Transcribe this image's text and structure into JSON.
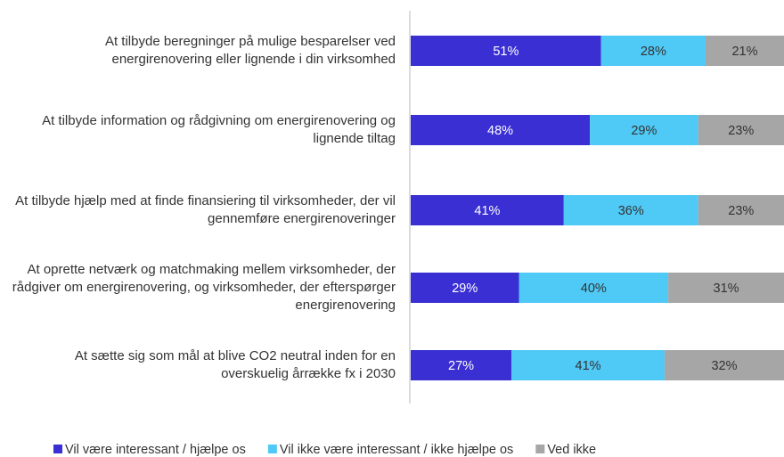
{
  "chart_data": {
    "type": "stacked_bar_horizontal",
    "categories": [
      "At tilbyde beregninger på mulige besparelser ved energirenovering eller lignende i din virksomhed",
      "At tilbyde information og rådgivning om energirenovering og lignende tiltag",
      "At tilbyde hjælp med at finde finansiering til virksomheder, der vil gennemføre energirenoveringer",
      "At oprette netværk og matchmaking mellem virksomheder, der rådgiver om energirenovering, og virksomheder, der efterspørger energirenovering",
      "At sætte sig som mål at blive CO2 neutral inden for en overskuelig årrække fx i 2030"
    ],
    "series": [
      {
        "name": "Vil være interessant / hjælpe os",
        "color": "#3a2fd3",
        "values": [
          51,
          48,
          41,
          29,
          27
        ],
        "value_labels": [
          "51%",
          "48%",
          "41%",
          "29%",
          "27%"
        ]
      },
      {
        "name": "Vil ikke være interessant / ikke hjælpe os",
        "color": "#4fc9f5",
        "values": [
          28,
          29,
          36,
          40,
          41
        ],
        "value_labels": [
          "28%",
          "29%",
          "36%",
          "40%",
          "41%"
        ]
      },
      {
        "name": "Ved ikke",
        "color": "#a6a6a6",
        "values": [
          21,
          23,
          23,
          31,
          32
        ],
        "value_labels": [
          "21%",
          "23%",
          "23%",
          "31%",
          "32%"
        ]
      }
    ],
    "xlim": [
      0,
      100
    ],
    "legend": "bottom"
  }
}
